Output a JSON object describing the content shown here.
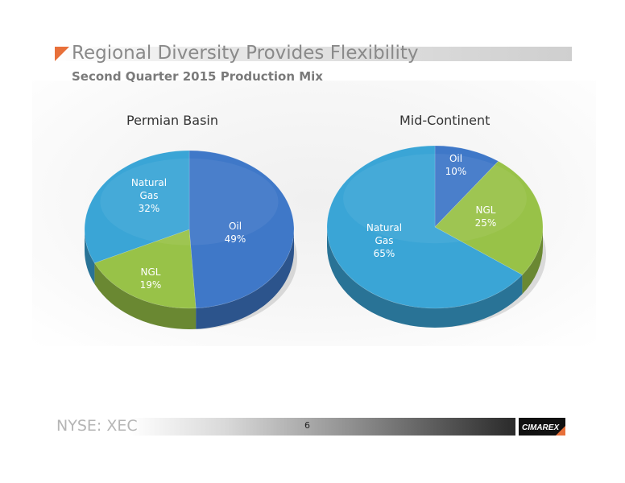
{
  "header": {
    "title": "Regional Diversity Provides Flexibility",
    "subtitle": "Second Quarter 2015 Production Mix"
  },
  "footer": {
    "ticker": "NYSE: XEC",
    "page_number": "6",
    "logo_text": "CIMAREX"
  },
  "colors": {
    "oil": "#3f78c8",
    "ngl": "#98c248",
    "natural_gas": "#3aa5d6",
    "accent": "#e8703a"
  },
  "chart_data": [
    {
      "type": "pie",
      "title": "Permian Basin",
      "slices": [
        {
          "label": "Oil",
          "value": 49,
          "value_label": "49%"
        },
        {
          "label": "NGL",
          "value": 19,
          "value_label": "19%"
        },
        {
          "label": "Natural Gas",
          "value": 32,
          "value_label": "32%"
        }
      ]
    },
    {
      "type": "pie",
      "title": "Mid-Continent",
      "slices": [
        {
          "label": "Oil",
          "value": 10,
          "value_label": "10%"
        },
        {
          "label": "NGL",
          "value": 25,
          "value_label": "25%"
        },
        {
          "label": "Natural Gas",
          "value": 65,
          "value_label": "65%"
        }
      ]
    }
  ]
}
